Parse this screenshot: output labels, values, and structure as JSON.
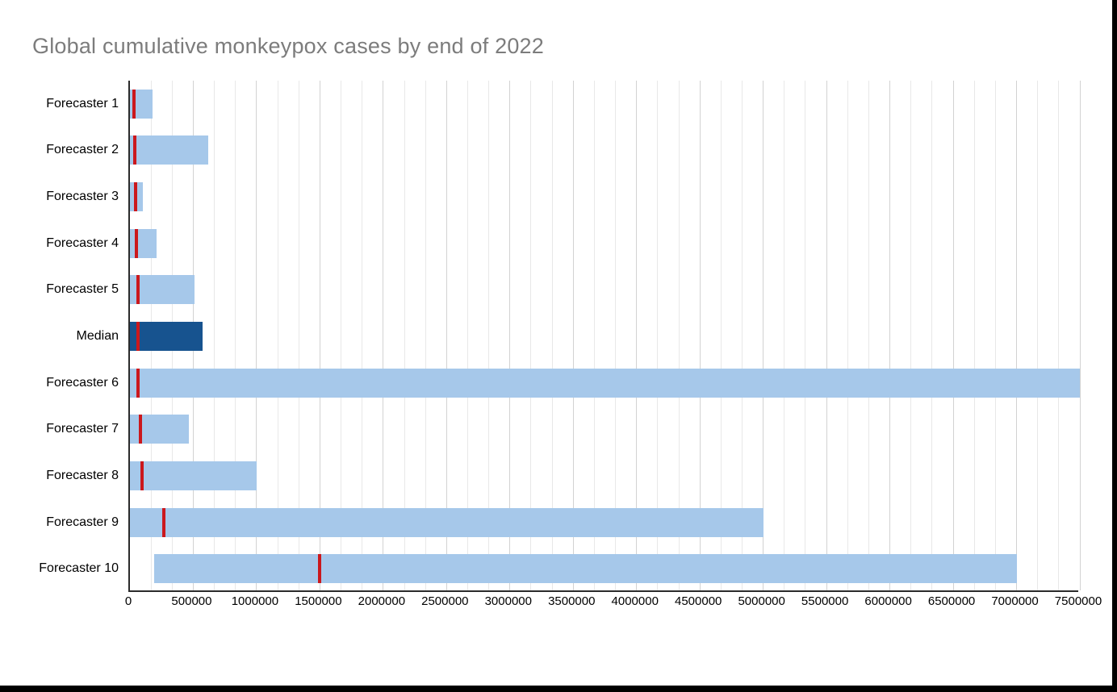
{
  "page": {
    "title": "Global cumulative monkeypox cases by end of 2022"
  },
  "colors": {
    "bar": "#a6c8ea",
    "median_bar": "#17538f",
    "marker": "#cb181d",
    "grid_minor": "#e8e8e8",
    "grid_major": "#d2d2d2",
    "axis": "#2b2b2b",
    "title": "#7c7c7c"
  },
  "chart_data": {
    "type": "bar",
    "orientation": "horizontal",
    "title": "Global cumulative monkeypox cases by end of 2022",
    "xlabel": "",
    "ylabel": "",
    "xlim": [
      0,
      7500000
    ],
    "grid": "vertical only; minor gridlines every 166667, major (darker) every 500000",
    "legend": "none",
    "x_ticks": [
      0,
      500000,
      1000000,
      1500000,
      2000000,
      2500000,
      3000000,
      3500000,
      4000000,
      4500000,
      5000000,
      5500000,
      6000000,
      6500000,
      7000000,
      7500000
    ],
    "x_tick_labels": [
      "0",
      "500000",
      "1000000",
      "1500000",
      "2000000",
      "2500000",
      "3000000",
      "3500000",
      "4000000",
      "4500000",
      "5000000",
      "5500000",
      "6000000",
      "6500000",
      "7000000",
      "7500000"
    ],
    "bar_description": "Each row is a light-blue forecast interval bar from range_start to range_end with a red vertical point-estimate marker; the Median row bar is dark blue",
    "rows": [
      {
        "label": "Forecaster 1",
        "range_start": 0,
        "range_end": 180000,
        "marker": 30000,
        "is_median": false
      },
      {
        "label": "Forecaster 2",
        "range_start": 0,
        "range_end": 615000,
        "marker": 40000,
        "is_median": false
      },
      {
        "label": "Forecaster 3",
        "range_start": 0,
        "range_end": 100000,
        "marker": 45000,
        "is_median": false
      },
      {
        "label": "Forecaster 4",
        "range_start": 0,
        "range_end": 210000,
        "marker": 48000,
        "is_median": false
      },
      {
        "label": "Forecaster 5",
        "range_start": 0,
        "range_end": 510000,
        "marker": 62000,
        "is_median": false
      },
      {
        "label": "Median",
        "range_start": 0,
        "range_end": 575000,
        "marker": 65000,
        "is_median": true
      },
      {
        "label": "Forecaster 6",
        "range_start": 0,
        "range_end": 7500000,
        "marker": 62000,
        "is_median": false
      },
      {
        "label": "Forecaster 7",
        "range_start": 0,
        "range_end": 465000,
        "marker": 80000,
        "is_median": false
      },
      {
        "label": "Forecaster 8",
        "range_start": 0,
        "range_end": 1000000,
        "marker": 95000,
        "is_median": false
      },
      {
        "label": "Forecaster 9",
        "range_start": 0,
        "range_end": 5000000,
        "marker": 265000,
        "is_median": false
      },
      {
        "label": "Forecaster 10",
        "range_start": 190000,
        "range_end": 7000000,
        "marker": 1500000,
        "is_median": false
      }
    ]
  }
}
